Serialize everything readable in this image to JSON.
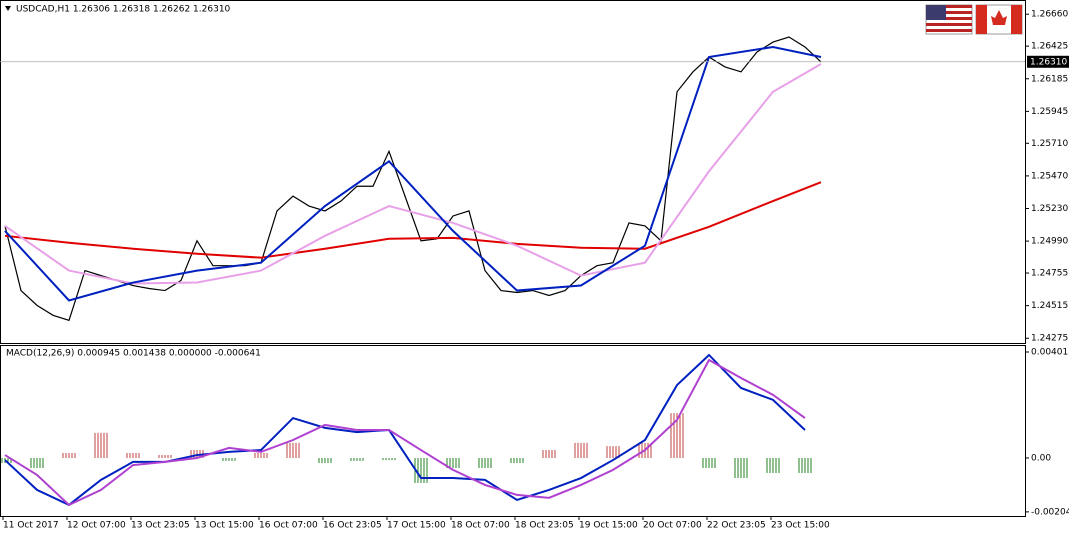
{
  "chart_data": [
    {
      "type": "line",
      "title": "USDCAD,H1 1.26306 1.26318 1.26262 1.26310",
      "ylim": [
        1.2424,
        1.2675
      ],
      "yticks": [
        {
          "value": 1.2666,
          "label": "1.26660"
        },
        {
          "value": 1.26425,
          "label": "1.26425"
        },
        {
          "value": 1.26185,
          "label": "1.26185"
        },
        {
          "value": 1.25945,
          "label": "1.25945"
        },
        {
          "value": 1.2571,
          "label": "1.25710"
        },
        {
          "value": 1.2547,
          "label": "1.25470"
        },
        {
          "value": 1.2523,
          "label": "1.25230"
        },
        {
          "value": 1.2499,
          "label": "1.24990"
        },
        {
          "value": 1.24755,
          "label": "1.24755"
        },
        {
          "value": 1.24515,
          "label": "1.24515"
        },
        {
          "value": 1.24275,
          "label": "1.24275"
        }
      ],
      "last_price": {
        "value": 1.2631,
        "label": "1.26310"
      },
      "series": [
        {
          "color": "#000000",
          "values": [
            1.25102,
            1.24626,
            1.24517,
            1.24444,
            1.24407,
            1.24773,
            1.24736,
            1.247,
            1.24663,
            1.24641,
            1.24626,
            1.247,
            1.24992,
            1.24809,
            1.24809,
            1.24809,
            1.24831,
            1.25212,
            1.25321,
            1.25248,
            1.25212,
            1.25285,
            1.25394,
            1.25394,
            1.25651,
            1.25321,
            1.24992,
            1.25007,
            1.25175,
            1.25212,
            1.24773,
            1.24626,
            1.24612,
            1.24626,
            1.2459,
            1.24626,
            1.24736,
            1.24809,
            1.24831,
            1.25124,
            1.25102,
            1.24992,
            1.26089,
            1.26236,
            1.26345,
            1.26272,
            1.26236,
            1.26382,
            1.26455,
            1.26492,
            1.26419,
            1.26309
          ]
        },
        {
          "color": "#e00000",
          "x": [
            0,
            4,
            8,
            12,
            16,
            20,
            24,
            28,
            32,
            36,
            40,
            44,
            48,
            51
          ],
          "values": [
            1.25029,
            1.24978,
            1.24934,
            1.24897,
            1.24868,
            1.24934,
            1.25007,
            1.25014,
            1.2497,
            1.24941,
            1.24934,
            1.25095,
            1.25285,
            1.25424
          ]
        },
        {
          "color": "#e8a0e8",
          "x": [
            0,
            4,
            8,
            12,
            16,
            20,
            24,
            28,
            32,
            36,
            40,
            44,
            48,
            51
          ],
          "values": [
            1.25102,
            1.24773,
            1.24678,
            1.24685,
            1.24773,
            1.25029,
            1.25248,
            1.25124,
            1.24956,
            1.24736,
            1.24831,
            1.25504,
            1.26089,
            1.26294
          ]
        },
        {
          "color": "#0020c0",
          "x": [
            0,
            4,
            8,
            12,
            16,
            20,
            24,
            28,
            32,
            36,
            40,
            44,
            48,
            51
          ],
          "values": [
            1.25065,
            1.24553,
            1.24685,
            1.24773,
            1.24831,
            1.25248,
            1.25577,
            1.25065,
            1.24626,
            1.24663,
            1.24956,
            1.26345,
            1.26419,
            1.26345
          ]
        }
      ]
    },
    {
      "type": "macd",
      "title": "MACD(12,26,9) 0.000945 0.001438 0.000000 -0.000641",
      "ylim": [
        -0.00216,
        0.00424
      ],
      "yticks": [
        0.004013,
        {
          "value": 0,
          "label": "0.00"
        },
        -0.002042
      ],
      "histogram": {
        "up_color": "#c04040",
        "down_color": "#208020",
        "values": [
          -0.00019,
          -0.00038,
          0.00019,
          0.00095,
          0.00019,
          0.00011,
          0.0003,
          -0.00011,
          0.00019,
          0.00057,
          -0.00019,
          -0.00011,
          -8e-05,
          -0.00095,
          -0.00038,
          -0.00038,
          -0.00019,
          0.0003,
          0.00057,
          0.00045,
          0.00057,
          0.0017,
          -0.00038,
          -0.00076,
          -0.00057,
          -0.00057
        ]
      },
      "series": [
        {
          "color": "#0020c0",
          "values": [
            -8e-05,
            -0.00121,
            -0.00178,
            -0.00083,
            -0.00015,
            -0.00015,
            0.00011,
            0.00023,
            0.0003,
            0.00151,
            0.00114,
            0.00098,
            0.00106,
            -0.00076,
            -0.00076,
            -0.00083,
            -0.00159,
            -0.00121,
            -0.00076,
            -8e-05,
            0.00068,
            0.00276,
            0.0039,
            0.00265,
            0.0022,
            0.00106
          ]
        },
        {
          "color": "#b040d0",
          "values": [
            0.00011,
            -0.00064,
            -0.00178,
            -0.00121,
            -0.00027,
            -0.00015,
            0,
            0.00038,
            0.00023,
            0.00068,
            0.00125,
            0.00106,
            0.00106,
            0.0003,
            -0.00045,
            -0.00102,
            -0.0014,
            -0.00151,
            -0.00102,
            -0.00045,
            0.0003,
            0.00144,
            0.00371,
            0.00303,
            0.00239,
            0.00151
          ]
        }
      ]
    }
  ],
  "time_axis": [
    "11 Oct 2017",
    "12 Oct 07:00",
    "13 Oct 23:05",
    "13 Oct 15:00",
    "16 Oct 07:00",
    "16 Oct 23:05",
    "17 Oct 15:00",
    "18 Oct 07:00",
    "18 Oct 23:05",
    "19 Oct 15:00",
    "20 Oct 07:00",
    "22 Oct 23:05",
    "23 Oct 15:00"
  ]
}
